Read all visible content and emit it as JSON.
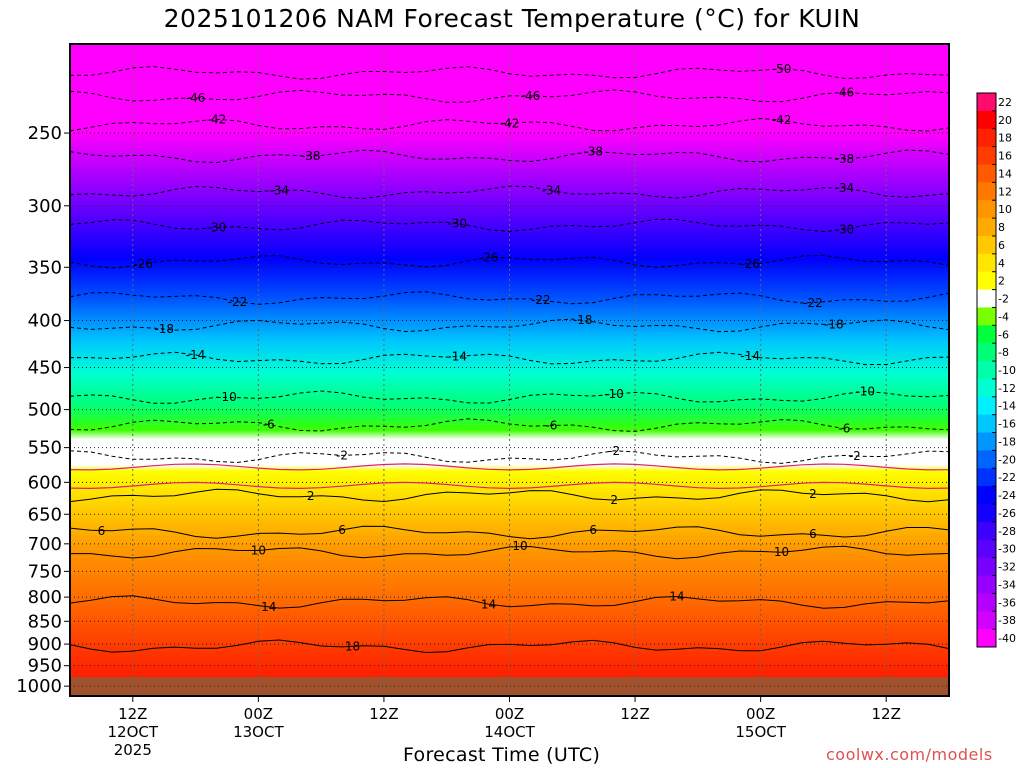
{
  "title": "2025101206 NAM Forecast Temperature (°C) for KUIN",
  "xlabel": "Forecast Time (UTC)",
  "credit": "coolwx.com/models",
  "chart_data": {
    "type": "contour-time-height",
    "title": "2025101206 NAM Forecast Temperature (°C) for KUIN",
    "xlabel": "Forecast Time (UTC)",
    "ylabel": "",
    "units": "°C",
    "y_levels_hPa": [
      1000,
      950,
      900,
      850,
      800,
      750,
      700,
      650,
      600,
      550,
      500,
      450,
      400,
      350,
      300,
      250
    ],
    "y_tick_labels": [
      "1000",
      "950",
      "900",
      "850",
      "800",
      "750",
      "700",
      "650",
      "600",
      "550",
      "500",
      "450",
      "400",
      "350",
      "300",
      "250"
    ],
    "y_range_hPa": [
      1025,
      200
    ],
    "x_ticks": [
      {
        "label": "12Z",
        "sub": "12OCT",
        "sub2": "2025",
        "hours": 6
      },
      {
        "label": "00Z",
        "sub": "13OCT",
        "sub2": "",
        "hours": 18
      },
      {
        "label": "12Z",
        "sub": "",
        "sub2": "",
        "hours": 30
      },
      {
        "label": "00Z",
        "sub": "14OCT",
        "sub2": "",
        "hours": 42
      },
      {
        "label": "12Z",
        "sub": "",
        "sub2": "",
        "hours": 54
      },
      {
        "label": "00Z",
        "sub": "15OCT",
        "sub2": "",
        "hours": 66
      },
      {
        "label": "12Z",
        "sub": "",
        "sub2": "",
        "hours": 78
      }
    ],
    "x_range_hours": [
      0,
      84
    ],
    "grid": true,
    "legend": "right colorbar",
    "colorbar_labels": [
      "22",
      "20",
      "18",
      "16",
      "14",
      "12",
      "10",
      "8",
      "6",
      "4",
      "2",
      "-2",
      "-4",
      "-6",
      "-8",
      "-10",
      "-12",
      "-14",
      "-16",
      "-18",
      "-20",
      "-22",
      "-24",
      "-26",
      "-28",
      "-30",
      "-32",
      "-34",
      "-36",
      "-38",
      "-40"
    ],
    "colorbar_colors": [
      "#ff0a6e",
      "#ff0000",
      "#ff2200",
      "#ff3c00",
      "#ff5a00",
      "#ff7800",
      "#ff9600",
      "#ffaa00",
      "#ffc800",
      "#ffe600",
      "#ffff00",
      "#ffffff",
      "#78ff00",
      "#00ff3c",
      "#00ff78",
      "#00ffaa",
      "#00ffd2",
      "#00f0ff",
      "#00c8ff",
      "#0096ff",
      "#0064ff",
      "#0032ff",
      "#0000ff",
      "#1400ff",
      "#3c00ff",
      "#5a00ff",
      "#7800ff",
      "#9600ff",
      "#b400ff",
      "#d200ff",
      "#ff00ff"
    ],
    "isotherms": [
      {
        "value": -50,
        "label": "-50",
        "pressure": 215,
        "label_hours": 68
      },
      {
        "value": -46,
        "label": "-46",
        "pressure": 228,
        "label_hours": 12
      },
      {
        "value": -46,
        "label": "-46",
        "pressure": 228,
        "label_hours": 44
      },
      {
        "value": -46,
        "label": "-46",
        "pressure": 228,
        "label_hours": 74
      },
      {
        "value": -42,
        "label": "-42",
        "pressure": 245,
        "label_hours": 14
      },
      {
        "value": -42,
        "label": "-42",
        "pressure": 245,
        "label_hours": 42
      },
      {
        "value": -42,
        "label": "-42",
        "pressure": 245,
        "label_hours": 68
      },
      {
        "value": -38,
        "label": "-38",
        "pressure": 265,
        "label_hours": 23
      },
      {
        "value": -38,
        "label": "-38",
        "pressure": 265,
        "label_hours": 50
      },
      {
        "value": -38,
        "label": "-38",
        "pressure": 265,
        "label_hours": 74
      },
      {
        "value": -34,
        "label": "-34",
        "pressure": 290,
        "label_hours": 20
      },
      {
        "value": -34,
        "label": "-34",
        "pressure": 290,
        "label_hours": 46
      },
      {
        "value": -34,
        "label": "-34",
        "pressure": 290,
        "label_hours": 74
      },
      {
        "value": -30,
        "label": "-30",
        "pressure": 315,
        "label_hours": 14
      },
      {
        "value": -30,
        "label": "-30",
        "pressure": 315,
        "label_hours": 37
      },
      {
        "value": -30,
        "label": "-30",
        "pressure": 315,
        "label_hours": 74
      },
      {
        "value": -26,
        "label": "-26",
        "pressure": 345,
        "label_hours": 7
      },
      {
        "value": -26,
        "label": "-26",
        "pressure": 345,
        "label_hours": 40
      },
      {
        "value": -26,
        "label": "-26",
        "pressure": 345,
        "label_hours": 65
      },
      {
        "value": -22,
        "label": "-22",
        "pressure": 378,
        "label_hours": 16
      },
      {
        "value": -22,
        "label": "-22",
        "pressure": 378,
        "label_hours": 45
      },
      {
        "value": -22,
        "label": "-22",
        "pressure": 378,
        "label_hours": 71
      },
      {
        "value": -18,
        "label": "-18",
        "pressure": 405,
        "label_hours": 9
      },
      {
        "value": -18,
        "label": "-18",
        "pressure": 405,
        "label_hours": 49
      },
      {
        "value": -18,
        "label": "-18",
        "pressure": 405,
        "label_hours": 73
      },
      {
        "value": -14,
        "label": "-14",
        "pressure": 440,
        "label_hours": 12
      },
      {
        "value": -14,
        "label": "-14",
        "pressure": 440,
        "label_hours": 37
      },
      {
        "value": -14,
        "label": "-14",
        "pressure": 440,
        "label_hours": 65
      },
      {
        "value": -10,
        "label": "-10",
        "pressure": 485,
        "label_hours": 15
      },
      {
        "value": -10,
        "label": "-10",
        "pressure": 485,
        "label_hours": 52
      },
      {
        "value": -10,
        "label": "-10",
        "pressure": 485,
        "label_hours": 76
      },
      {
        "value": -6,
        "label": "-6",
        "pressure": 520,
        "label_hours": 19
      },
      {
        "value": -6,
        "label": "-6",
        "pressure": 520,
        "label_hours": 46
      },
      {
        "value": -6,
        "label": "-6",
        "pressure": 520,
        "label_hours": 74
      },
      {
        "value": -2,
        "label": "-2",
        "pressure": 563,
        "label_hours": 26
      },
      {
        "value": -2,
        "label": "-2",
        "pressure": 563,
        "label_hours": 52
      },
      {
        "value": -2,
        "label": "-2",
        "pressure": 563,
        "label_hours": 75
      },
      {
        "value": 2,
        "label": "2",
        "pressure": 620,
        "label_hours": 23
      },
      {
        "value": 2,
        "label": "2",
        "pressure": 620,
        "label_hours": 52
      },
      {
        "value": 2,
        "label": "2",
        "pressure": 620,
        "label_hours": 71
      },
      {
        "value": 6,
        "label": "6",
        "pressure": 680,
        "label_hours": 3
      },
      {
        "value": 6,
        "label": "6",
        "pressure": 680,
        "label_hours": 26
      },
      {
        "value": 6,
        "label": "6",
        "pressure": 680,
        "label_hours": 50
      },
      {
        "value": 6,
        "label": "6",
        "pressure": 680,
        "label_hours": 71
      },
      {
        "value": 10,
        "label": "10",
        "pressure": 715,
        "label_hours": 18
      },
      {
        "value": 10,
        "label": "10",
        "pressure": 715,
        "label_hours": 43
      },
      {
        "value": 10,
        "label": "10",
        "pressure": 715,
        "label_hours": 68
      },
      {
        "value": 14,
        "label": "14",
        "pressure": 810,
        "label_hours": 19
      },
      {
        "value": 14,
        "label": "14",
        "pressure": 810,
        "label_hours": 40
      },
      {
        "value": 14,
        "label": "14",
        "pressure": 810,
        "label_hours": 58
      },
      {
        "value": 18,
        "label": "18",
        "pressure": 905,
        "label_hours": 27
      }
    ]
  }
}
